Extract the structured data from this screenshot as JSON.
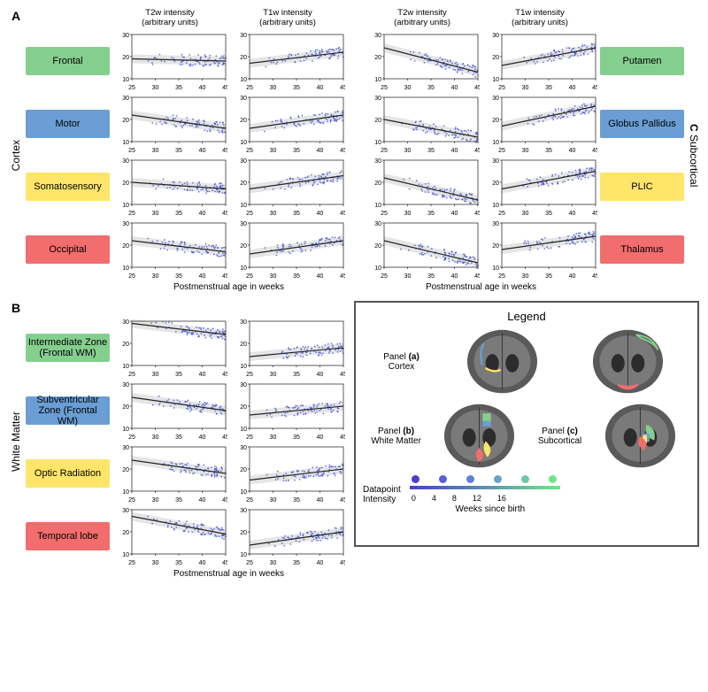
{
  "columns": {
    "t2": "T2w intensity\n(arbitrary units)",
    "t1": "T1w intensity\n(arbitrary units)"
  },
  "xaxis": "Postmenstrual age in weeks",
  "panels": {
    "A": {
      "side": "Cortex",
      "letter": "A"
    },
    "B": {
      "side": "White Matter",
      "letter": "B"
    },
    "C": {
      "side": "Subcortical",
      "letter": "C"
    }
  },
  "colors": {
    "green": "#85cf8e",
    "blue": "#6a9ed4",
    "yellow": "#ffe569",
    "red": "#f26d6d",
    "scatter": "#2e3fd6",
    "line": "#222222",
    "band": "#d0d0d0",
    "axis": "#333333",
    "brain": "#5a5a5a",
    "brain_dark": "#2c2c2c",
    "cbar": [
      "#4b3fd0",
      "#5560d7",
      "#5f81d9",
      "#6aa3c9",
      "#6fc7a6",
      "#6de68a"
    ]
  },
  "regionsA": [
    {
      "label": "Frontal",
      "color": "green",
      "t2": [
        19,
        18
      ],
      "t1": [
        17,
        22
      ]
    },
    {
      "label": "Motor",
      "color": "blue",
      "t2": [
        22,
        16
      ],
      "t1": [
        16,
        22
      ]
    },
    {
      "label": "Somatosensory",
      "color": "yellow",
      "t2": [
        20,
        17
      ],
      "t1": [
        17,
        23
      ]
    },
    {
      "label": "Occipital",
      "color": "red",
      "t2": [
        22,
        17
      ],
      "t1": [
        16,
        22
      ]
    }
  ],
  "regionsC": [
    {
      "label": "Putamen",
      "color": "green",
      "t2": [
        24,
        13
      ],
      "t1": [
        16,
        24
      ]
    },
    {
      "label": "Globus Pallidus",
      "color": "blue",
      "t2": [
        20,
        12
      ],
      "t1": [
        17,
        26
      ]
    },
    {
      "label": "PLIC",
      "color": "yellow",
      "t2": [
        22,
        12
      ],
      "t1": [
        17,
        25
      ]
    },
    {
      "label": "Thalamus",
      "color": "red",
      "t2": [
        22,
        12
      ],
      "t1": [
        18,
        24
      ]
    }
  ],
  "regionsB": [
    {
      "label": "Intermediate Zone (Frontal WM)",
      "color": "green",
      "t2": [
        29,
        24
      ],
      "t1": [
        14,
        18
      ]
    },
    {
      "label": "Subventricular Zone (Frontal WM)",
      "color": "blue",
      "t2": [
        24,
        18
      ],
      "t1": [
        16,
        20
      ]
    },
    {
      "label": "Optic Radiation",
      "color": "yellow",
      "t2": [
        24,
        18
      ],
      "t1": [
        15,
        20
      ]
    },
    {
      "label": "Temporal lobe",
      "color": "red",
      "t2": [
        27,
        19
      ],
      "t1": [
        14,
        20
      ]
    }
  ],
  "axis": {
    "xmin": 25,
    "xmax": 45,
    "xticks": [
      25,
      30,
      35,
      40,
      45
    ],
    "ymin": 10,
    "ymax": 30,
    "yticks": [
      10,
      20,
      30
    ],
    "npts": 80
  },
  "legend": {
    "title": "Legend",
    "panels": [
      {
        "id": "a",
        "label": "Panel (a)\nCortex"
      },
      {
        "id": "b",
        "label": "Panel (b)\nWhite Matter"
      },
      {
        "id": "c",
        "label": "Panel (c)\nSubcortical"
      }
    ],
    "cbar_label": "Datapoint\nIntensity",
    "cbar_ticks": [
      0,
      4,
      8,
      12,
      16
    ],
    "cbar_axis": "Weeks since birth"
  }
}
